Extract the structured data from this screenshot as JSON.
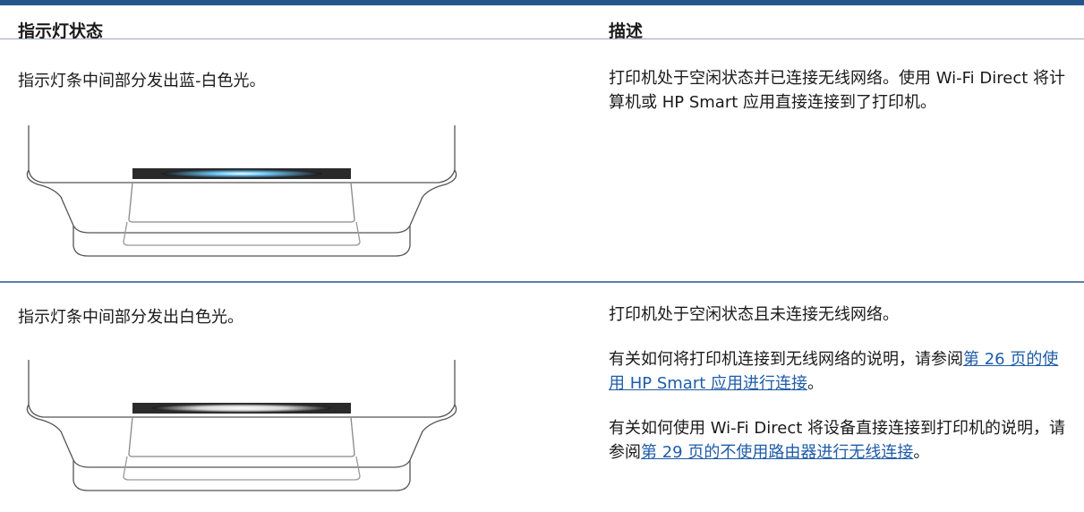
{
  "table": {
    "headers": [
      "指示灯状态",
      "描述"
    ],
    "rows": [
      {
        "state": "指示灯条中间部分发出蓝-白色光。",
        "description": [
          {
            "text": "打印机处于空闲状态并已连接无线网络。使用 Wi-Fi Direct 将计算机或 HP Smart 应用直接连接到了打印机。"
          }
        ]
      },
      {
        "state": "指示灯条中间部分发出白色光。",
        "description": [
          {
            "text": "打印机处于空闲状态且未连接无线网络。"
          },
          {
            "text": "有关如何将打印机连接到无线网络的说明，请参阅",
            "link": "第 26 页的使用 HP Smart 应用进行连接",
            "after": "。"
          },
          {
            "text": "有关如何使用 Wi-Fi Direct 将设备直接连接到打印机的说明，请参阅",
            "link": "第 29 页的不使用路由器进行无线连接",
            "after": "。"
          }
        ]
      }
    ]
  }
}
